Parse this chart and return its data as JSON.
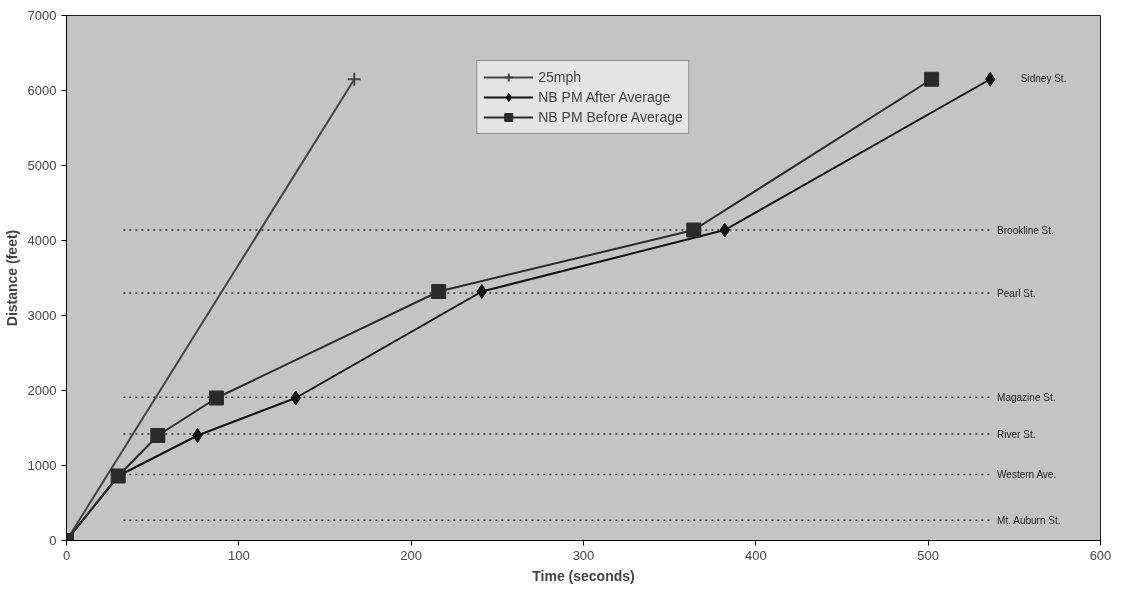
{
  "chart_data": {
    "type": "line",
    "xlabel": "Time (seconds)",
    "ylabel": "Distance (feet)",
    "xlim": [
      0,
      600
    ],
    "xticks": [
      0,
      100,
      200,
      300,
      400,
      500,
      600
    ],
    "ylim": [
      0,
      7000
    ],
    "yticks": [
      0,
      1000,
      2000,
      3000,
      4000,
      5000,
      6000,
      7000
    ],
    "grid": false,
    "legend": "top",
    "line_style": "solid",
    "series": [
      {
        "name": "25mph",
        "color": "#444444",
        "marker": "cross",
        "x": [
          0,
          167
        ],
        "values": [
          0,
          6150
        ]
      },
      {
        "name": "NB PM After Average",
        "color": "#111111",
        "marker": "diamond",
        "x": [
          0,
          30,
          76,
          133,
          241,
          382,
          536
        ],
        "values": [
          0,
          860,
          1400,
          1900,
          3320,
          4140,
          6150
        ]
      },
      {
        "name": "NB PM Before Average",
        "color": "#2a2a2a",
        "marker": "square",
        "x": [
          0,
          30,
          53,
          87,
          216,
          364,
          502
        ],
        "values": [
          0,
          860,
          1400,
          1900,
          3320,
          4140,
          6150
        ]
      }
    ],
    "ref_lines": [
      {
        "axis": "y",
        "value": 270,
        "label": "Mt. Auburn St.",
        "color": "#333333",
        "line_style": "dotted"
      },
      {
        "axis": "y",
        "value": 880,
        "label": "Western Ave.",
        "color": "#333333",
        "line_style": "dotted"
      },
      {
        "axis": "y",
        "value": 1420,
        "label": "River St.",
        "color": "#333333",
        "line_style": "dotted"
      },
      {
        "axis": "y",
        "value": 1910,
        "label": "Magazine St.",
        "color": "#333333",
        "line_style": "dotted"
      },
      {
        "axis": "y",
        "value": 3300,
        "label": "Pearl St.",
        "color": "#333333",
        "line_style": "dotted"
      },
      {
        "axis": "y",
        "value": 4140,
        "label": "Brookline St.",
        "color": "#333333",
        "line_style": "dotted"
      }
    ],
    "annotations": [
      "Sidney St."
    ]
  }
}
